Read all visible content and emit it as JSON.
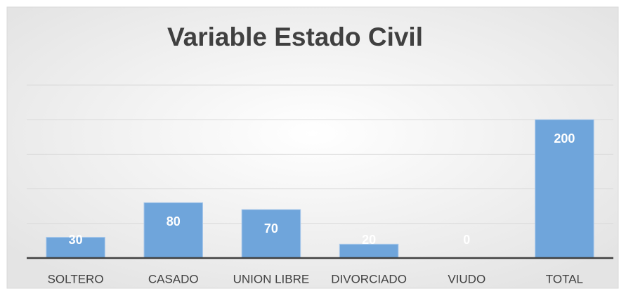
{
  "chart_data": {
    "type": "bar",
    "title": "Variable Estado Civil",
    "categories": [
      "SOLTERO",
      "CASADO",
      "UNION LIBRE",
      "DIVORCIADO",
      "VIUDO",
      "TOTAL"
    ],
    "values": [
      30,
      80,
      70,
      20,
      0,
      200
    ],
    "color": "#6fa5db",
    "ylim": [
      0,
      250
    ],
    "yticks": [
      0,
      50,
      100,
      150,
      200,
      250
    ],
    "grid": true
  }
}
